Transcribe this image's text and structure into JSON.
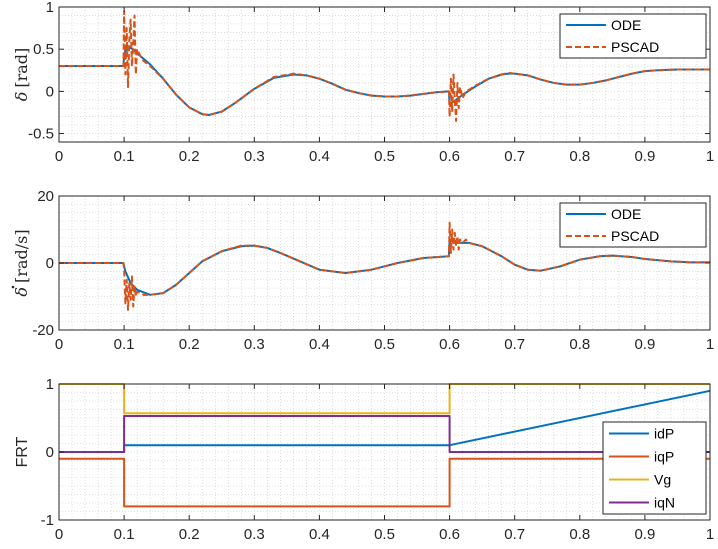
{
  "colors": {
    "blue": "#0072BD",
    "orange": "#D95319",
    "yellow": "#EDB120",
    "purple": "#7E2F8E",
    "axis": "#262626"
  },
  "chart_data": [
    {
      "type": "line",
      "ylabel_symbol": "δ",
      "ylabel_unit": "[rad]",
      "xlim": [
        0,
        1
      ],
      "ylim": [
        -0.6,
        1
      ],
      "xticks": [
        0,
        0.1,
        0.2,
        0.3,
        0.4,
        0.5,
        0.6,
        0.7,
        0.8,
        0.9,
        1
      ],
      "xtick_labels": [
        "0",
        "0.1",
        "0.2",
        "0.3",
        "0.4",
        "0.5",
        "0.6",
        "0.7",
        "0.8",
        "0.9",
        "1"
      ],
      "yticks": [
        -0.5,
        0,
        0.5,
        1
      ],
      "ytick_labels": [
        "-0.5",
        "0",
        "0.5",
        "1"
      ],
      "grid": "minor-dotted",
      "legend_position": "top-right",
      "series": [
        {
          "name": "ODE",
          "color": "blue",
          "style": "solid",
          "x": [
            0,
            0.099,
            0.1,
            0.102,
            0.11,
            0.12,
            0.14,
            0.16,
            0.18,
            0.2,
            0.22,
            0.23,
            0.25,
            0.27,
            0.3,
            0.33,
            0.36,
            0.38,
            0.4,
            0.42,
            0.44,
            0.46,
            0.48,
            0.5,
            0.52,
            0.54,
            0.56,
            0.58,
            0.599,
            0.6,
            0.605,
            0.61,
            0.62,
            0.64,
            0.66,
            0.68,
            0.69,
            0.7,
            0.72,
            0.74,
            0.76,
            0.78,
            0.8,
            0.82,
            0.84,
            0.86,
            0.88,
            0.9,
            0.92,
            0.95,
            1.0
          ],
          "y": [
            0.3,
            0.3,
            0.42,
            0.48,
            0.52,
            0.45,
            0.32,
            0.15,
            -0.04,
            -0.19,
            -0.27,
            -0.28,
            -0.24,
            -0.14,
            0.03,
            0.16,
            0.2,
            0.19,
            0.15,
            0.09,
            0.02,
            -0.02,
            -0.05,
            -0.06,
            -0.06,
            -0.05,
            -0.03,
            -0.01,
            0.0,
            -0.15,
            -0.13,
            -0.1,
            -0.04,
            0.06,
            0.15,
            0.2,
            0.21,
            0.21,
            0.19,
            0.14,
            0.1,
            0.08,
            0.08,
            0.1,
            0.13,
            0.17,
            0.21,
            0.24,
            0.25,
            0.26,
            0.26
          ]
        },
        {
          "name": "PSCAD",
          "color": "orange",
          "style": "dashed",
          "x": [
            0,
            0.099,
            0.1,
            0.102,
            0.104,
            0.106,
            0.108,
            0.11,
            0.112,
            0.114,
            0.116,
            0.118,
            0.12,
            0.125,
            0.13,
            0.14,
            0.16,
            0.18,
            0.2,
            0.22,
            0.23,
            0.25,
            0.27,
            0.3,
            0.33,
            0.36,
            0.38,
            0.4,
            0.42,
            0.44,
            0.46,
            0.48,
            0.5,
            0.52,
            0.54,
            0.56,
            0.58,
            0.599,
            0.6,
            0.602,
            0.604,
            0.606,
            0.608,
            0.61,
            0.612,
            0.614,
            0.616,
            0.62,
            0.625,
            0.63,
            0.64,
            0.66,
            0.68,
            0.69,
            0.7,
            0.72,
            0.74,
            0.76,
            0.78,
            0.8,
            0.82,
            0.84,
            0.86,
            0.88,
            0.9,
            0.92,
            0.95,
            1.0
          ],
          "y": [
            0.3,
            0.3,
            0.95,
            0.2,
            0.75,
            0.05,
            0.6,
            0.85,
            0.3,
            0.55,
            0.9,
            0.2,
            0.5,
            0.42,
            0.36,
            0.3,
            0.15,
            -0.04,
            -0.19,
            -0.27,
            -0.28,
            -0.24,
            -0.14,
            0.03,
            0.17,
            0.21,
            0.19,
            0.15,
            0.09,
            0.02,
            -0.02,
            -0.05,
            -0.06,
            -0.06,
            -0.05,
            -0.03,
            -0.01,
            0.0,
            -0.3,
            0.15,
            -0.25,
            0.2,
            -0.1,
            -0.35,
            0.1,
            -0.2,
            0.05,
            -0.08,
            0.0,
            0.02,
            0.07,
            0.15,
            0.2,
            0.22,
            0.21,
            0.19,
            0.14,
            0.1,
            0.08,
            0.08,
            0.1,
            0.13,
            0.17,
            0.21,
            0.24,
            0.25,
            0.26,
            0.26
          ]
        }
      ]
    },
    {
      "type": "line",
      "ylabel_symbol": "δ",
      "ylabel_unit": "[rad/s]",
      "ylabel_dot": true,
      "xlim": [
        0,
        1
      ],
      "ylim": [
        -20,
        20
      ],
      "xticks": [
        0,
        0.1,
        0.2,
        0.3,
        0.4,
        0.5,
        0.6,
        0.7,
        0.8,
        0.9,
        1
      ],
      "xtick_labels": [
        "0",
        "0.1",
        "0.2",
        "0.3",
        "0.4",
        "0.5",
        "0.6",
        "0.7",
        "0.8",
        "0.9",
        "1"
      ],
      "yticks": [
        -20,
        0,
        20
      ],
      "ytick_labels": [
        "-20",
        "0",
        "20"
      ],
      "grid": "minor-dotted",
      "legend_position": "top-right",
      "series": [
        {
          "name": "ODE",
          "color": "blue",
          "style": "solid",
          "x": [
            0,
            0.099,
            0.1,
            0.102,
            0.11,
            0.12,
            0.14,
            0.16,
            0.18,
            0.2,
            0.22,
            0.25,
            0.28,
            0.3,
            0.32,
            0.34,
            0.37,
            0.4,
            0.44,
            0.48,
            0.52,
            0.56,
            0.599,
            0.6,
            0.605,
            0.61,
            0.63,
            0.65,
            0.68,
            0.7,
            0.72,
            0.74,
            0.77,
            0.8,
            0.83,
            0.85,
            0.88,
            0.9,
            0.94,
            0.97,
            1.0
          ],
          "y": [
            0,
            0,
            -1,
            -2.5,
            -6,
            -8,
            -9.5,
            -9,
            -6.5,
            -3,
            0.5,
            3.5,
            5,
            5.2,
            4.5,
            3,
            0.5,
            -2,
            -3,
            -2,
            0,
            1.5,
            2,
            7,
            6.5,
            6,
            6,
            5,
            2,
            -0.5,
            -2,
            -2.3,
            -1,
            1,
            2,
            2.2,
            1.8,
            1.2,
            0.5,
            0.2,
            0.2
          ]
        },
        {
          "name": "PSCAD",
          "color": "orange",
          "style": "dashed",
          "x": [
            0,
            0.099,
            0.1,
            0.102,
            0.104,
            0.106,
            0.108,
            0.11,
            0.112,
            0.114,
            0.116,
            0.118,
            0.12,
            0.125,
            0.13,
            0.14,
            0.16,
            0.18,
            0.2,
            0.22,
            0.25,
            0.28,
            0.3,
            0.32,
            0.34,
            0.37,
            0.4,
            0.44,
            0.48,
            0.52,
            0.56,
            0.599,
            0.6,
            0.602,
            0.604,
            0.606,
            0.608,
            0.61,
            0.612,
            0.614,
            0.616,
            0.62,
            0.625,
            0.63,
            0.65,
            0.68,
            0.7,
            0.72,
            0.74,
            0.77,
            0.8,
            0.83,
            0.85,
            0.88,
            0.9,
            0.94,
            0.97,
            1.0
          ],
          "y": [
            0,
            0,
            -2,
            -12,
            -5,
            -14,
            -6,
            -11,
            -4,
            -13,
            -7,
            -10,
            -8.5,
            -9,
            -9.5,
            -9.5,
            -9,
            -6.5,
            -3,
            0.5,
            3.5,
            5.2,
            5.2,
            4.5,
            3,
            0.5,
            -2,
            -3,
            -2,
            0,
            1.5,
            2,
            12,
            3,
            10,
            4,
            9,
            5,
            8,
            4,
            7,
            6,
            7,
            6,
            5,
            2,
            -0.5,
            -2,
            -2.3,
            -1,
            1,
            2,
            2.2,
            1.8,
            1.2,
            0.5,
            0.2,
            0.2
          ]
        }
      ]
    },
    {
      "type": "line",
      "ylabel": "FRT",
      "xlim": [
        0,
        1
      ],
      "ylim": [
        -1,
        1
      ],
      "xticks": [
        0,
        0.1,
        0.2,
        0.3,
        0.4,
        0.5,
        0.6,
        0.7,
        0.8,
        0.9,
        1
      ],
      "xtick_labels": [
        "0",
        "0.1",
        "0.2",
        "0.3",
        "0.4",
        "0.5",
        "0.6",
        "0.7",
        "0.8",
        "0.9",
        "1"
      ],
      "yticks": [
        -1,
        0,
        1
      ],
      "ytick_labels": [
        "-1",
        "0",
        "1"
      ],
      "grid": "minor-dotted",
      "legend_position": "bottom-right",
      "series": [
        {
          "name": "idP",
          "color": "blue",
          "style": "solid",
          "x": [
            0,
            0.1,
            0.1,
            0.6,
            0.6,
            1.0
          ],
          "y": [
            0,
            0,
            0.1,
            0.1,
            0.1,
            0.9
          ]
        },
        {
          "name": "iqP",
          "color": "orange",
          "style": "solid",
          "x": [
            0,
            0.1,
            0.1,
            0.6,
            0.6,
            1.0
          ],
          "y": [
            -0.1,
            -0.1,
            -0.8,
            -0.8,
            -0.1,
            -0.1
          ]
        },
        {
          "name": "Vg",
          "color": "yellow",
          "style": "solid",
          "x": [
            0,
            0.1,
            0.1,
            0.6,
            0.6,
            1.0
          ],
          "y": [
            1,
            1,
            0.57,
            0.57,
            1,
            1
          ]
        },
        {
          "name": "iqN",
          "color": "purple",
          "style": "solid",
          "x": [
            0,
            0.1,
            0.1,
            0.6,
            0.6,
            1.0
          ],
          "y": [
            0,
            0,
            0.53,
            0.53,
            0,
            0
          ]
        }
      ]
    }
  ]
}
